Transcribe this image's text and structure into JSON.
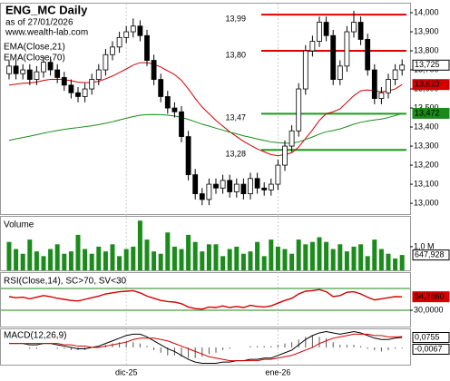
{
  "header": {
    "title": "ENG_MC Daily",
    "as_of": "as of 27/01/2026",
    "site": "www.wealth-lab.com"
  },
  "chart_data": [
    {
      "type": "candlestick",
      "categories": [
        null,
        null,
        null,
        null,
        null,
        null,
        null,
        null,
        null,
        null,
        null,
        null,
        null,
        null,
        null,
        null,
        null,
        "dic-25",
        null,
        null,
        null,
        null,
        null,
        null,
        null,
        null,
        null,
        null,
        null,
        null,
        null,
        null,
        null,
        null,
        null,
        null,
        null,
        null,
        null,
        "ene-26",
        null,
        null,
        null,
        null,
        null,
        null,
        null,
        null,
        null,
        null,
        null,
        null,
        null,
        null,
        null,
        null,
        null,
        null
      ],
      "open": [
        13.68,
        13.72,
        13.68,
        13.7,
        13.65,
        13.69,
        13.74,
        13.7,
        13.66,
        13.62,
        13.58,
        13.56,
        13.6,
        13.65,
        13.7,
        13.78,
        13.82,
        13.87,
        13.9,
        13.93,
        13.88,
        13.75,
        13.65,
        13.56,
        13.5,
        13.48,
        13.35,
        13.15,
        13.05,
        13.02,
        13.1,
        13.08,
        13.12,
        13.06,
        13.1,
        13.05,
        13.13,
        13.08,
        13.07,
        13.1,
        13.2,
        13.3,
        13.38,
        13.6,
        13.8,
        13.85,
        13.95,
        13.88,
        13.65,
        13.72,
        13.9,
        13.95,
        13.86,
        13.7,
        13.55,
        13.58,
        13.65,
        13.7
      ],
      "high": [
        13.75,
        13.75,
        13.73,
        13.73,
        13.72,
        13.77,
        13.77,
        13.73,
        13.69,
        13.65,
        13.61,
        13.63,
        13.68,
        13.73,
        13.81,
        13.85,
        13.9,
        13.93,
        13.97,
        13.96,
        13.91,
        13.78,
        13.68,
        13.59,
        13.53,
        13.51,
        13.38,
        13.18,
        13.08,
        13.13,
        13.13,
        13.15,
        13.15,
        13.13,
        13.13,
        13.16,
        13.16,
        13.11,
        13.13,
        13.23,
        13.33,
        13.41,
        13.63,
        13.83,
        13.88,
        13.98,
        13.98,
        13.91,
        13.75,
        13.93,
        14.01,
        13.98,
        13.89,
        13.73,
        13.61,
        13.68,
        13.73,
        13.755
      ],
      "low": [
        13.65,
        13.65,
        13.65,
        13.62,
        13.62,
        13.66,
        13.67,
        13.63,
        13.59,
        13.55,
        13.53,
        13.53,
        13.57,
        13.62,
        13.67,
        13.75,
        13.79,
        13.84,
        13.87,
        13.85,
        13.72,
        13.62,
        13.53,
        13.47,
        13.45,
        13.32,
        13.12,
        13.02,
        12.99,
        12.99,
        13.05,
        13.05,
        13.03,
        13.03,
        13.02,
        13.02,
        13.05,
        13.04,
        13.04,
        13.07,
        13.17,
        13.27,
        13.35,
        13.57,
        13.77,
        13.82,
        13.85,
        13.62,
        13.62,
        13.69,
        13.87,
        13.83,
        13.67,
        13.52,
        13.52,
        13.55,
        13.62,
        13.67
      ],
      "close": [
        13.72,
        13.68,
        13.7,
        13.65,
        13.69,
        13.74,
        13.7,
        13.66,
        13.62,
        13.58,
        13.56,
        13.6,
        13.65,
        13.7,
        13.78,
        13.82,
        13.87,
        13.9,
        13.93,
        13.88,
        13.75,
        13.65,
        13.56,
        13.5,
        13.48,
        13.35,
        13.15,
        13.05,
        13.02,
        13.1,
        13.08,
        13.12,
        13.06,
        13.1,
        13.05,
        13.13,
        13.08,
        13.07,
        13.1,
        13.2,
        13.3,
        13.38,
        13.6,
        13.8,
        13.85,
        13.95,
        13.88,
        13.65,
        13.72,
        13.9,
        13.95,
        13.86,
        13.7,
        13.55,
        13.58,
        13.65,
        13.7,
        13.725
      ],
      "last_label": "13,725",
      "up_color": "#ffffff",
      "down_color": "#000000",
      "series": [
        {
          "name": "EMA(Close,21)",
          "color": "#d40000",
          "last_label": "13,623",
          "values": [
            13.62,
            13.625,
            13.63,
            13.632,
            13.636,
            13.645,
            13.65,
            13.651,
            13.649,
            13.643,
            13.636,
            13.633,
            13.634,
            13.64,
            13.653,
            13.668,
            13.686,
            13.705,
            13.725,
            13.738,
            13.738,
            13.73,
            13.715,
            13.695,
            13.675,
            13.645,
            13.6,
            13.55,
            13.505,
            13.47,
            13.435,
            13.405,
            13.375,
            13.35,
            13.325,
            13.305,
            13.285,
            13.27,
            13.255,
            13.25,
            13.255,
            13.265,
            13.295,
            13.34,
            13.385,
            13.435,
            13.47,
            13.48,
            13.495,
            13.53,
            13.565,
            13.59,
            13.595,
            13.59,
            13.585,
            13.59,
            13.6,
            13.623
          ]
        },
        {
          "name": "EMA(Close,70)",
          "color": "#1a8a1a",
          "last_label": "13,472",
          "values": [
            13.33,
            13.338,
            13.345,
            13.352,
            13.36,
            13.368,
            13.375,
            13.382,
            13.388,
            13.393,
            13.397,
            13.402,
            13.407,
            13.413,
            13.42,
            13.428,
            13.437,
            13.446,
            13.455,
            13.462,
            13.465,
            13.466,
            13.465,
            13.462,
            13.458,
            13.451,
            13.44,
            13.428,
            13.415,
            13.405,
            13.394,
            13.384,
            13.373,
            13.364,
            13.354,
            13.346,
            13.337,
            13.33,
            13.322,
            13.318,
            13.316,
            13.315,
            13.322,
            13.335,
            13.348,
            13.363,
            13.375,
            13.382,
            13.39,
            13.402,
            13.415,
            13.425,
            13.432,
            13.437,
            13.442,
            13.45,
            13.46,
            13.472
          ]
        }
      ],
      "levels": [
        {
          "value": 13.99,
          "label": "13,99",
          "color": "#e00000"
        },
        {
          "value": 13.8,
          "label": "13,80",
          "color": "#e00000"
        },
        {
          "value": 13.47,
          "label": "13,47",
          "color": "#1a9a1a"
        },
        {
          "value": 13.28,
          "label": "13,28",
          "color": "#1a9a1a"
        }
      ],
      "ylim": [
        12.948,
        14.043
      ],
      "yticks": [
        {
          "value": 13,
          "label": "13,000"
        },
        {
          "value": 13.1,
          "label": "13,100"
        },
        {
          "value": 13.2,
          "label": "13,200"
        },
        {
          "value": 13.3,
          "label": "13,300"
        },
        {
          "value": 13.4,
          "label": "13,400"
        },
        {
          "value": 13.5,
          "label": "13,500"
        },
        {
          "value": 13.6,
          "label": "13,600"
        },
        {
          "value": 13.7,
          "label": "13,700"
        },
        {
          "value": 13.8,
          "label": "13,800"
        },
        {
          "value": 13.9,
          "label": "13,900"
        },
        {
          "value": 14,
          "label": "14,000"
        }
      ]
    },
    {
      "type": "bar",
      "title": "Volume",
      "color": "#1b8c1b",
      "last_label": "647,928",
      "values": [
        1200000,
        900000,
        700000,
        1300000,
        800000,
        600000,
        900000,
        1100000,
        700000,
        800000,
        1500000,
        900000,
        700000,
        1000000,
        800000,
        1100000,
        600000,
        900000,
        1000000,
        2100000,
        1300000,
        800000,
        700000,
        1600000,
        1000000,
        900000,
        1500000,
        1200000,
        800000,
        1100000,
        1100000,
        600000,
        900000,
        1000000,
        700000,
        800000,
        1200000,
        600000,
        1300000,
        1000000,
        900000,
        700000,
        1300000,
        1100000,
        1200000,
        1400000,
        1200000,
        900000,
        1100000,
        800000,
        1000000,
        1100000,
        600000,
        1300000,
        900000,
        700000,
        500000,
        647928
      ],
      "ylim": [
        0,
        2300000
      ],
      "yticks": [
        {
          "value": 1000000,
          "label": "1,0 M"
        }
      ]
    },
    {
      "type": "line",
      "title": "RSI(Close,14), SC>70, SV<30",
      "color": "#d40000",
      "last_label": "54,7660",
      "level_color": "#1a8a1a",
      "levels": [
        70,
        30
      ],
      "values": [
        55,
        53,
        54,
        51,
        54,
        57,
        55,
        52,
        50,
        48,
        47,
        50,
        53,
        56,
        60,
        62,
        64,
        65,
        66,
        62,
        56,
        52,
        48,
        46,
        45,
        42,
        36,
        33,
        32,
        36,
        35,
        38,
        35,
        37,
        35,
        39,
        37,
        36,
        38,
        43,
        48,
        52,
        60,
        65,
        66,
        68,
        64,
        55,
        57,
        63,
        64,
        60,
        54,
        49,
        51,
        53,
        55,
        54.766
      ],
      "ylim": [
        0,
        100
      ],
      "yticks": [
        {
          "value": 30,
          "label": "30,0000"
        }
      ]
    },
    {
      "type": "macd",
      "title": "MACD(12,26,9)",
      "ylim": [
        -0.13,
        0.144
      ],
      "macd": {
        "color": "#000000",
        "last_label": "0,0755",
        "values": [
          0.03,
          0.03,
          0.03,
          0.02,
          0.02,
          0.03,
          0.03,
          0.02,
          0.01,
          0,
          -0.01,
          -0.01,
          0,
          0.01,
          0.03,
          0.05,
          0.07,
          0.09,
          0.1,
          0.1,
          0.08,
          0.05,
          0.02,
          -0.01,
          -0.03,
          -0.06,
          -0.09,
          -0.11,
          -0.12,
          -0.12,
          -0.12,
          -0.11,
          -0.11,
          -0.1,
          -0.1,
          -0.09,
          -0.09,
          -0.08,
          -0.08,
          -0.06,
          -0.04,
          -0.02,
          0.02,
          0.06,
          0.09,
          0.11,
          0.12,
          0.11,
          0.1,
          0.11,
          0.12,
          0.11,
          0.09,
          0.07,
          0.06,
          0.06,
          0.07,
          0.0755
        ]
      },
      "signal": {
        "color": "#d40000",
        "values": [
          0.03,
          0.03,
          0.03,
          0.03,
          0.03,
          0.03,
          0.03,
          0.03,
          0.02,
          0.02,
          0.01,
          0.01,
          0,
          0,
          0.01,
          0.02,
          0.03,
          0.04,
          0.06,
          0.07,
          0.07,
          0.07,
          0.06,
          0.05,
          0.03,
          0.01,
          -0.01,
          -0.03,
          -0.05,
          -0.07,
          -0.08,
          -0.09,
          -0.1,
          -0.1,
          -0.1,
          -0.1,
          -0.1,
          -0.09,
          -0.09,
          -0.08,
          -0.07,
          -0.06,
          -0.04,
          -0.02,
          0,
          0.03,
          0.05,
          0.07,
          0.08,
          0.09,
          0.1,
          0.1,
          0.1,
          0.09,
          0.09,
          0.08,
          0.08,
          0.0822
        ]
      },
      "histogram": {
        "color": "#555555",
        "last_label": "-0,0067",
        "values": [
          0,
          0,
          0,
          -0.01,
          -0.01,
          0,
          0,
          -0.01,
          -0.01,
          -0.02,
          -0.02,
          -0.02,
          0,
          0.01,
          0.02,
          0.03,
          0.04,
          0.05,
          0.04,
          0.03,
          0.01,
          -0.02,
          -0.04,
          -0.06,
          -0.06,
          -0.07,
          -0.08,
          -0.08,
          -0.07,
          -0.05,
          -0.04,
          -0.02,
          -0.01,
          0,
          0,
          0.01,
          0.01,
          0.01,
          0.01,
          0.02,
          0.03,
          0.04,
          0.06,
          0.08,
          0.09,
          0.08,
          0.07,
          0.04,
          0.02,
          0.02,
          0.02,
          0.01,
          -0.01,
          -0.02,
          -0.03,
          -0.02,
          -0.01,
          -0.0067
        ]
      }
    }
  ]
}
